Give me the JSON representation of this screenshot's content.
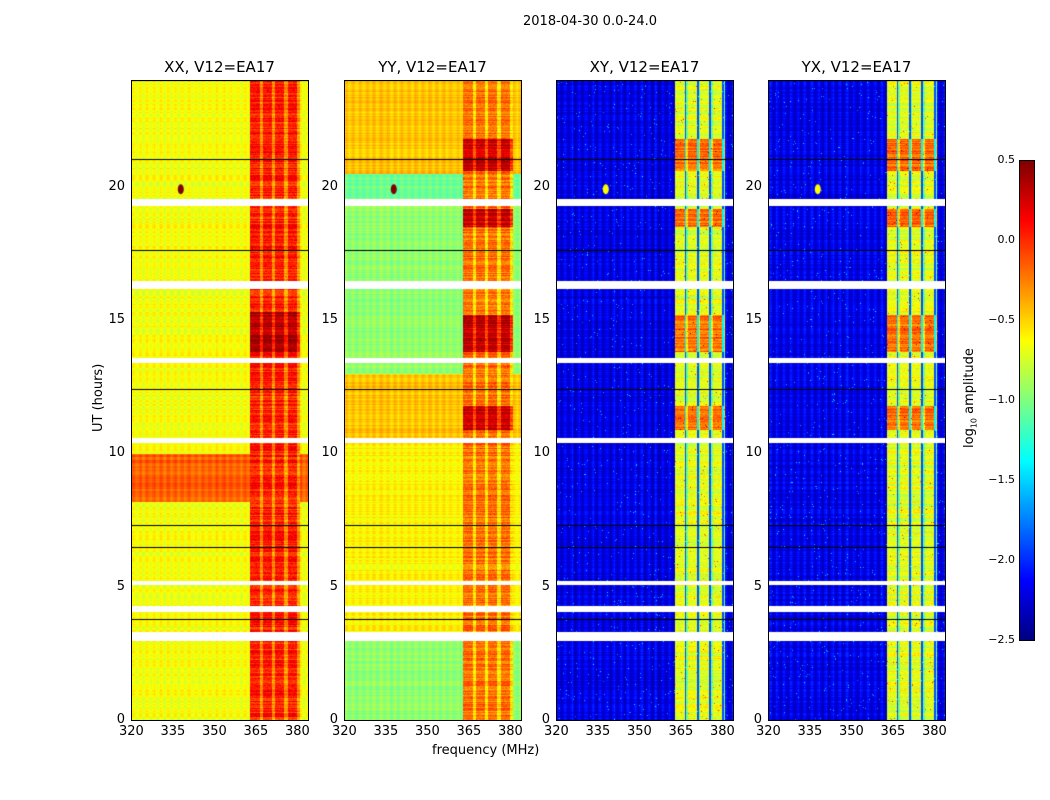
{
  "suptitle": "2018-04-30 0.0-24.0",
  "chart_data": {
    "type": "heatmap",
    "title": "2018-04-30 0.0-24.0",
    "xlabel": "frequency (MHz)",
    "ylabel": "UT (hours)",
    "xlim": [
      320,
      384
    ],
    "ylim": [
      0,
      24
    ],
    "xticks": [
      "320",
      "335",
      "350",
      "365",
      "380"
    ],
    "yticks": [
      "0",
      "5",
      "10",
      "15",
      "20"
    ],
    "colorbar": {
      "label": "log10 amplitude",
      "label_main": "log",
      "label_sub": "10",
      "label_rest": " amplitude",
      "range": [
        -2.5,
        0.5
      ],
      "ticks": [
        "0.5",
        "0.0",
        "−0.5",
        "−1.0",
        "−1.5",
        "−2.0",
        "−2.5"
      ],
      "colormap": "jet"
    },
    "flagged_hours": [
      [
        3.0,
        3.3
      ],
      [
        4.05,
        4.3
      ],
      [
        5.1,
        5.25
      ],
      [
        10.4,
        10.6
      ],
      [
        13.4,
        13.6
      ],
      [
        16.2,
        16.5
      ],
      [
        19.3,
        19.55
      ]
    ],
    "panels": [
      {
        "title": "XX, V12=EA17",
        "base": -0.65,
        "band": -0.1,
        "band_range": [
          363,
          381
        ],
        "segments": [
          [
            8.2,
            10.0,
            -0.15
          ]
        ]
      },
      {
        "title": "YY, V12=EA17",
        "base": -0.95,
        "band": -0.35,
        "band_range": [
          363,
          381
        ],
        "segments": [
          [
            3.3,
            8.2,
            -0.6
          ],
          [
            8.2,
            10.4,
            -0.6
          ],
          [
            10.6,
            13.0,
            -0.45
          ],
          [
            20.5,
            24,
            -0.45
          ]
        ]
      },
      {
        "title": "XY, V12=EA17",
        "base": -2.2,
        "band": -0.85,
        "band_range": [
          363,
          381
        ],
        "segments": []
      },
      {
        "title": "YX, V12=EA17",
        "base": -2.2,
        "band": -0.85,
        "band_range": [
          363,
          381
        ],
        "segments": []
      }
    ]
  }
}
